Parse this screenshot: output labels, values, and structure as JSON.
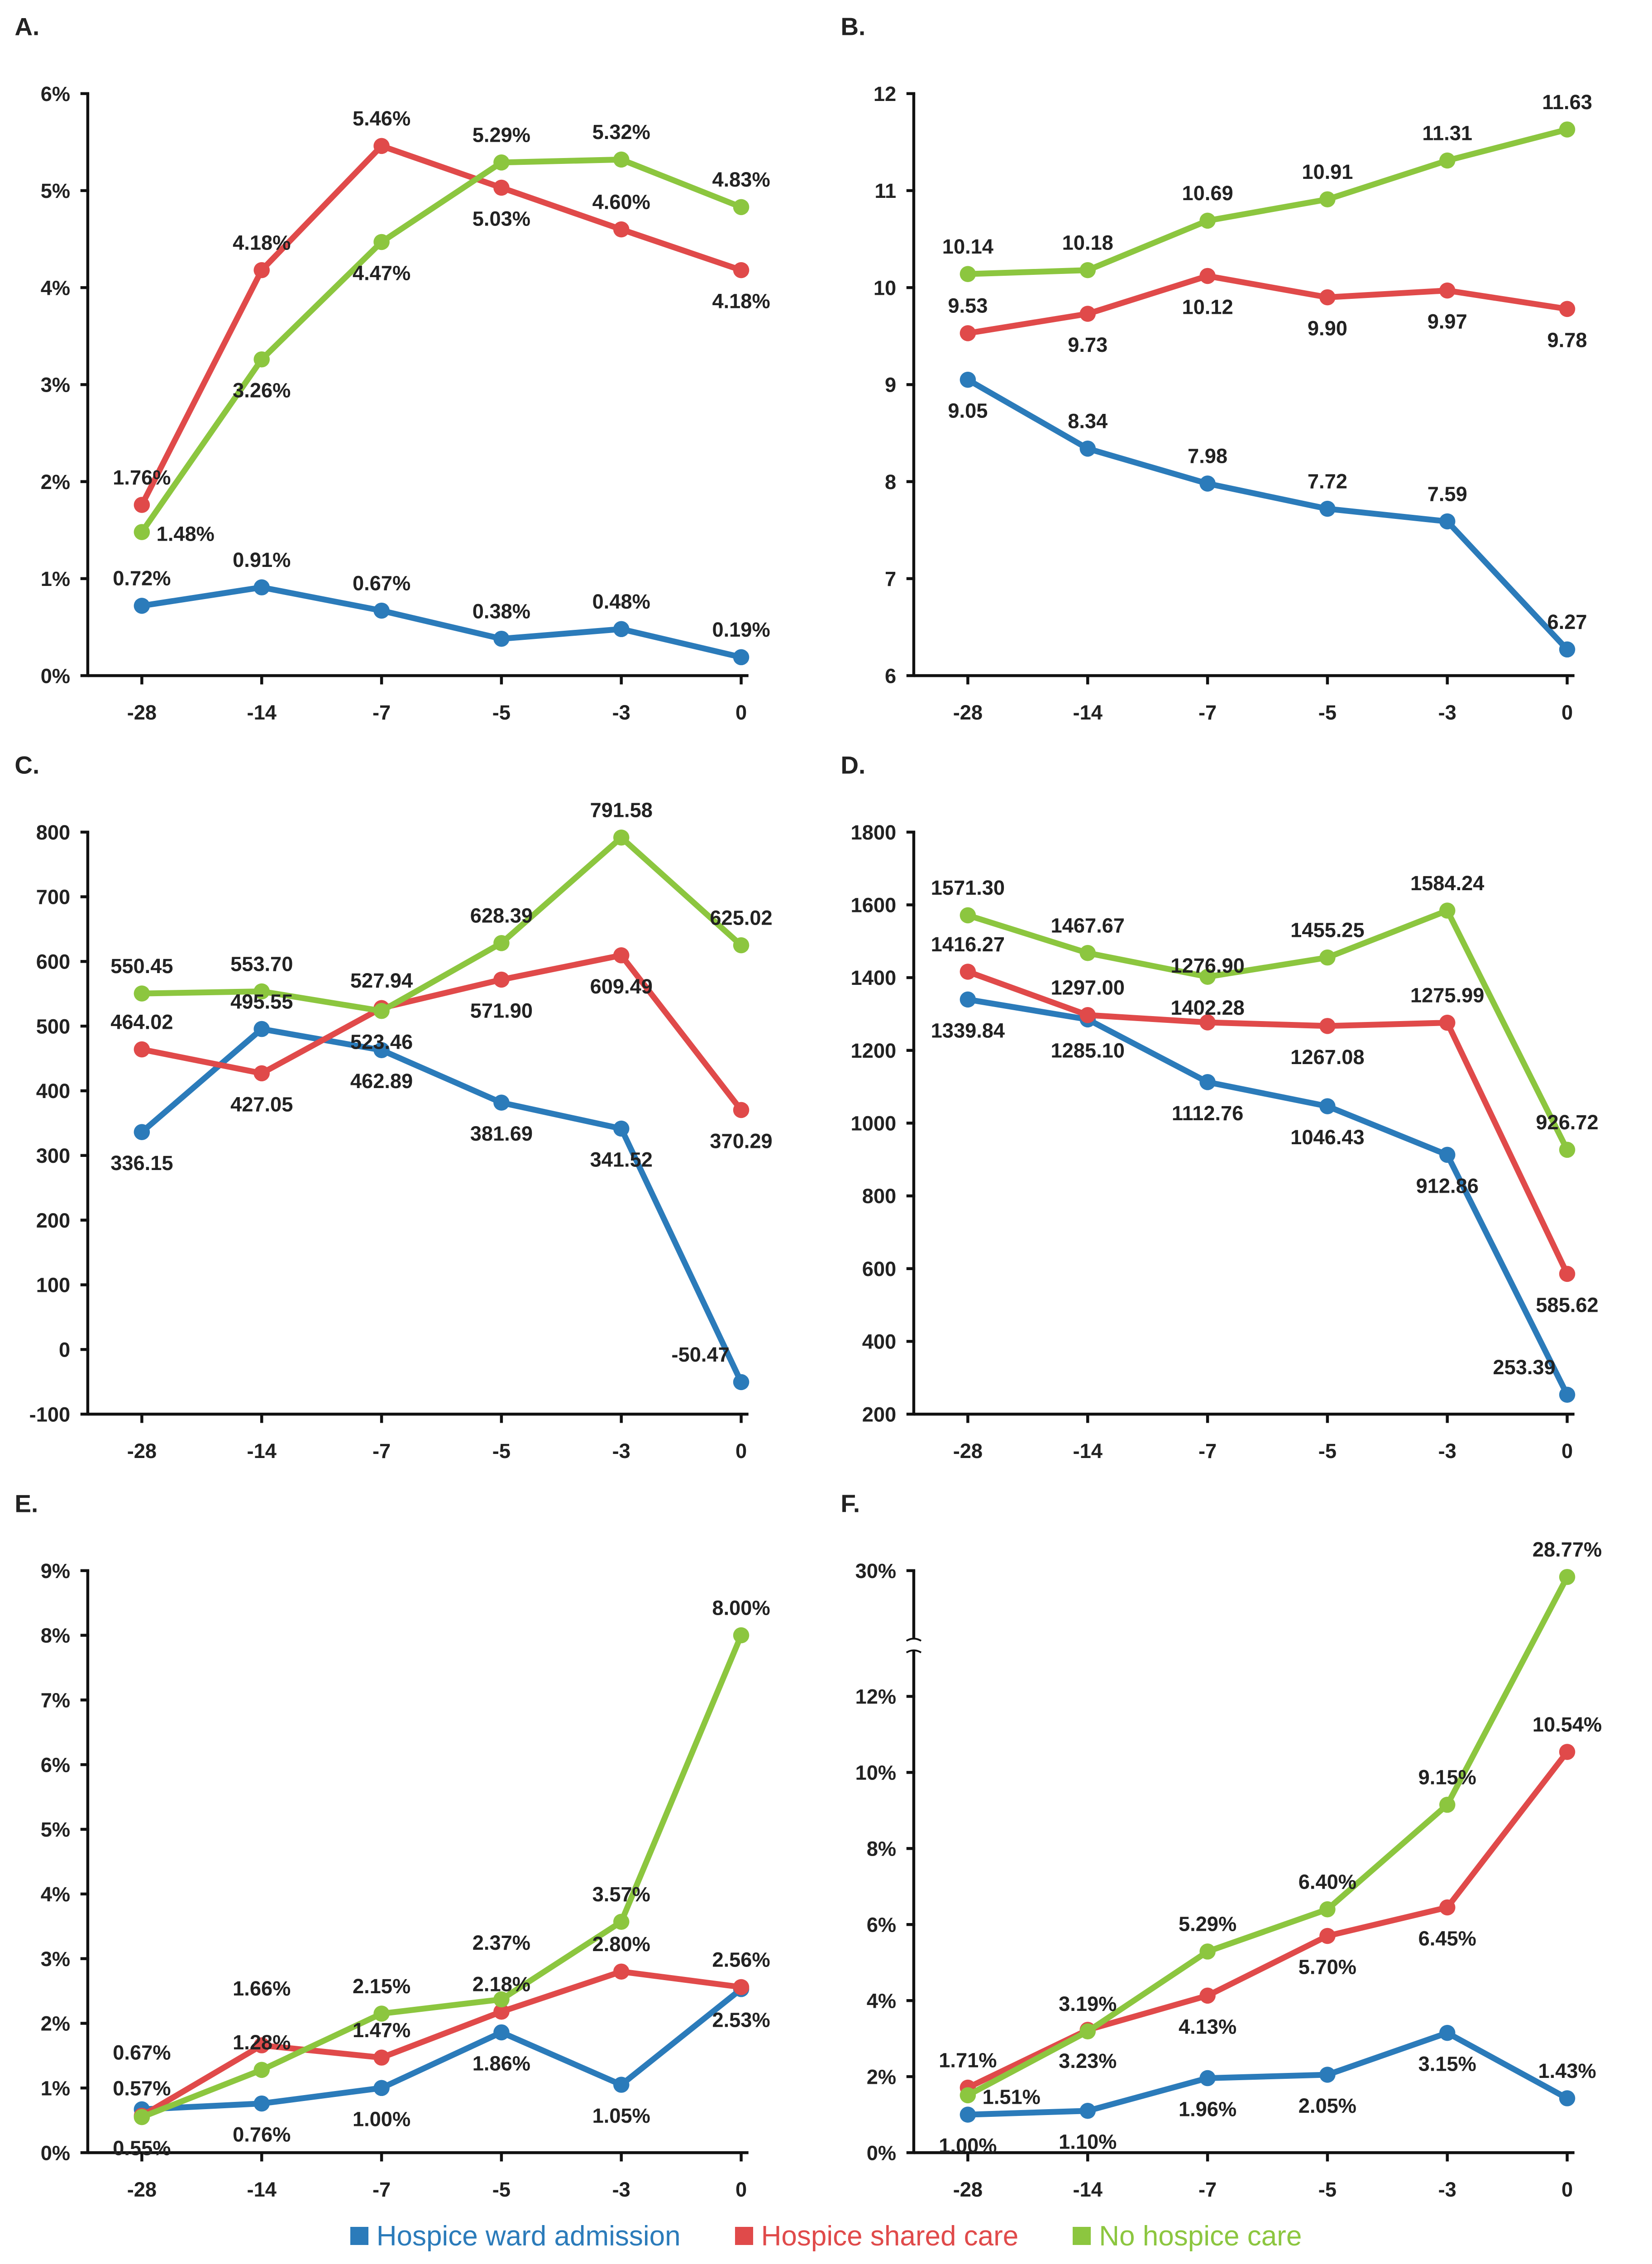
{
  "legend": [
    {
      "label": "Hospice ward admission",
      "color": "#2b7bba"
    },
    {
      "label": "Hospice shared care",
      "color": "#e04a4a"
    },
    {
      "label": "No hospice care",
      "color": "#8cc63f"
    }
  ],
  "chart_data": [
    {
      "type": "line",
      "title": "A.",
      "categories": [
        "-28",
        "-14",
        "-7",
        "-5",
        "-3",
        "0"
      ],
      "ylim": [
        0,
        6
      ],
      "yticks": [
        0,
        1,
        2,
        3,
        4,
        5,
        6
      ],
      "ytick_labels": [
        "0%",
        "1%",
        "2%",
        "3%",
        "4%",
        "5%",
        "6%"
      ],
      "value_suffix": "%",
      "decimals": 2,
      "series": [
        {
          "name": "Hospice ward admission",
          "values": [
            0.72,
            0.91,
            0.67,
            0.38,
            0.48,
            0.19
          ],
          "label_pos": [
            "above",
            "above",
            "above",
            "above",
            "above",
            "above"
          ]
        },
        {
          "name": "Hospice shared care",
          "values": [
            1.76,
            4.18,
            5.46,
            5.03,
            4.6,
            4.18
          ],
          "label_pos": [
            "left",
            "above",
            "above",
            "below",
            "above",
            "below"
          ]
        },
        {
          "name": "No hospice care",
          "values": [
            1.48,
            3.26,
            4.47,
            5.29,
            5.32,
            4.83
          ],
          "label_pos": [
            "right",
            "below",
            "below",
            "above",
            "above",
            "above"
          ]
        }
      ]
    },
    {
      "type": "line",
      "title": "B.",
      "categories": [
        "-28",
        "-14",
        "-7",
        "-5",
        "-3",
        "0"
      ],
      "ylim": [
        6,
        12
      ],
      "yticks": [
        6,
        7,
        8,
        9,
        10,
        11,
        12
      ],
      "ytick_labels": [
        "6",
        "7",
        "8",
        "9",
        "10",
        "11",
        "12"
      ],
      "value_suffix": "",
      "decimals": 2,
      "series": [
        {
          "name": "Hospice ward admission",
          "values": [
            9.05,
            8.34,
            7.98,
            7.72,
            7.59,
            6.27
          ],
          "label_pos": [
            "below",
            "above",
            "above",
            "above",
            "above",
            "above"
          ]
        },
        {
          "name": "Hospice shared care",
          "values": [
            9.53,
            9.73,
            10.12,
            9.9,
            9.97,
            9.78
          ],
          "label_pos": [
            "above",
            "below",
            "below",
            "below",
            "below",
            "below"
          ]
        },
        {
          "name": "No hospice care",
          "values": [
            10.14,
            10.18,
            10.69,
            10.91,
            11.31,
            11.63
          ],
          "label_pos": [
            "above",
            "above",
            "above",
            "above",
            "above",
            "above"
          ]
        }
      ]
    },
    {
      "type": "line",
      "title": "C.",
      "categories": [
        "-28",
        "-14",
        "-7",
        "-5",
        "-3",
        "0"
      ],
      "ylim": [
        -100,
        800
      ],
      "yticks": [
        -100,
        0,
        100,
        200,
        300,
        400,
        500,
        600,
        700,
        800
      ],
      "ytick_labels": [
        "-100",
        "0",
        "100",
        "200",
        "300",
        "400",
        "500",
        "600",
        "700",
        "800"
      ],
      "value_suffix": "",
      "decimals": 2,
      "series": [
        {
          "name": "Hospice ward admission",
          "values": [
            336.15,
            495.55,
            462.89,
            381.69,
            341.52,
            -50.47
          ],
          "label_pos": [
            "below",
            "above",
            "below",
            "below",
            "below",
            "left"
          ]
        },
        {
          "name": "Hospice shared care",
          "values": [
            464.02,
            427.05,
            527.94,
            571.9,
            609.49,
            370.29
          ],
          "label_pos": [
            "above",
            "below",
            "above",
            "below",
            "below",
            "below"
          ]
        },
        {
          "name": "No hospice care",
          "values": [
            550.45,
            553.7,
            523.46,
            628.39,
            791.58,
            625.02
          ],
          "label_pos": [
            "above",
            "above",
            "below",
            "above",
            "above",
            "above"
          ]
        }
      ]
    },
    {
      "type": "line",
      "title": "D.",
      "categories": [
        "-28",
        "-14",
        "-7",
        "-5",
        "-3",
        "0"
      ],
      "ylim": [
        200,
        1800
      ],
      "yticks": [
        200,
        400,
        600,
        800,
        1000,
        1200,
        1400,
        1600,
        1800
      ],
      "ytick_labels": [
        "200",
        "400",
        "600",
        "800",
        "1000",
        "1200",
        "1400",
        "1600",
        "1800"
      ],
      "value_suffix": "",
      "decimals": 2,
      "series": [
        {
          "name": "Hospice ward admission",
          "values": [
            1339.84,
            1285.1,
            1112.76,
            1046.43,
            912.86,
            253.39
          ],
          "label_pos": [
            "below",
            "below",
            "below",
            "below",
            "below",
            "left"
          ]
        },
        {
          "name": "Hospice shared care",
          "values": [
            1416.27,
            1297.0,
            1276.9,
            1267.08,
            1275.99,
            585.62
          ],
          "label_pos": [
            "above",
            "above",
            "above",
            "below",
            "above",
            "below"
          ]
        },
        {
          "name": "No hospice care",
          "values": [
            1571.3,
            1467.67,
            1402.28,
            1455.25,
            1584.24,
            926.72
          ],
          "label_pos": [
            "above",
            "above",
            "below",
            "above",
            "above",
            "above"
          ]
        }
      ]
    },
    {
      "type": "line",
      "title": "E.",
      "categories": [
        "-28",
        "-14",
        "-7",
        "-5",
        "-3",
        "0"
      ],
      "ylim": [
        0,
        9
      ],
      "yticks": [
        0,
        1,
        2,
        3,
        4,
        5,
        6,
        7,
        8,
        9
      ],
      "ytick_labels": [
        "0%",
        "1%",
        "2%",
        "3%",
        "4%",
        "5%",
        "6%",
        "7%",
        "8%",
        "9%"
      ],
      "value_suffix": "%",
      "decimals": 2,
      "series": [
        {
          "name": "Hospice ward admission",
          "values": [
            0.67,
            0.76,
            1.0,
            1.86,
            1.05,
            2.53
          ],
          "label_pos": [
            "above2",
            "below",
            "below",
            "below",
            "below",
            "below"
          ]
        },
        {
          "name": "Hospice shared care",
          "values": [
            0.57,
            1.66,
            1.47,
            2.18,
            2.8,
            2.56
          ],
          "label_pos": [
            "above",
            "above2",
            "above",
            "above",
            "above",
            "above"
          ]
        },
        {
          "name": "No hospice care",
          "values": [
            0.55,
            1.28,
            2.15,
            2.37,
            3.57,
            8.0
          ],
          "label_pos": [
            "below",
            "above",
            "above",
            "above2",
            "above",
            "above"
          ]
        }
      ]
    },
    {
      "type": "line",
      "title": "F.",
      "categories": [
        "-28",
        "-14",
        "-7",
        "-5",
        "-3",
        "0"
      ],
      "ylim": [
        0,
        30
      ],
      "axis_break": [
        13,
        30
      ],
      "yticks": [
        0,
        2,
        4,
        6,
        8,
        10,
        12,
        30
      ],
      "ytick_labels": [
        "0%",
        "2%",
        "4%",
        "6%",
        "8%",
        "10%",
        "12%",
        "30%"
      ],
      "value_suffix": "%",
      "decimals": 2,
      "series": [
        {
          "name": "Hospice ward admission",
          "values": [
            1.0,
            1.1,
            1.96,
            2.05,
            3.15,
            1.43
          ],
          "label_pos": [
            "below",
            "below",
            "below",
            "below",
            "below",
            "above"
          ]
        },
        {
          "name": "Hospice shared care",
          "values": [
            1.71,
            3.23,
            4.13,
            5.7,
            6.45,
            10.54
          ],
          "label_pos": [
            "above",
            "below",
            "below",
            "below",
            "below",
            "above"
          ]
        },
        {
          "name": "No hospice care",
          "values": [
            1.51,
            3.19,
            5.29,
            6.4,
            9.15,
            28.77
          ],
          "label_pos": [
            "right",
            "above",
            "above",
            "above",
            "above",
            "above"
          ]
        }
      ]
    }
  ]
}
